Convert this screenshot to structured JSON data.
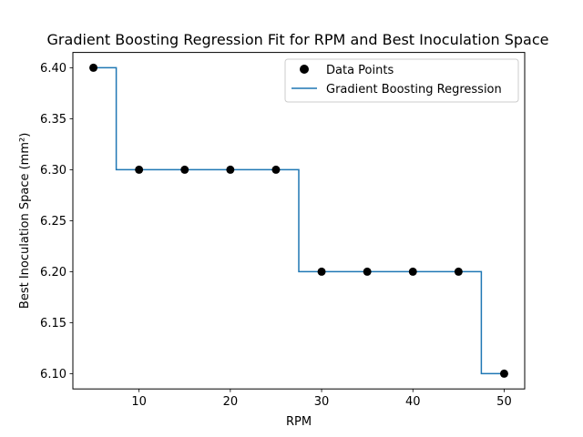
{
  "chart_data": {
    "type": "scatter",
    "title": "Gradient Boosting Regression Fit for RPM and Best Inoculation Space",
    "xlabel": "RPM",
    "ylabel": "Best Inoculation Space (mm²)",
    "xlim": [
      2.75,
      52.25
    ],
    "ylim": [
      6.085,
      6.415
    ],
    "xticks": [
      10,
      20,
      30,
      40,
      50
    ],
    "yticks": [
      6.1,
      6.15,
      6.2,
      6.25,
      6.3,
      6.35,
      6.4
    ],
    "xtick_labels": [
      "10",
      "20",
      "30",
      "40",
      "50"
    ],
    "ytick_labels": [
      "6.10",
      "6.15",
      "6.20",
      "6.25",
      "6.30",
      "6.35",
      "6.40"
    ],
    "grid": false,
    "legend_position": "upper-right",
    "series": [
      {
        "name": "Data Points",
        "kind": "scatter",
        "color": "#000000",
        "x": [
          5,
          10,
          15,
          20,
          25,
          30,
          35,
          40,
          45,
          50
        ],
        "y": [
          6.4,
          6.3,
          6.3,
          6.3,
          6.3,
          6.2,
          6.2,
          6.2,
          6.2,
          6.1
        ]
      },
      {
        "name": "Gradient Boosting Regression",
        "kind": "step-line",
        "color": "#1f77b4",
        "x": [
          5,
          7.5,
          7.5,
          27.5,
          27.5,
          47.5,
          47.5,
          50
        ],
        "y": [
          6.4,
          6.4,
          6.3,
          6.3,
          6.2,
          6.2,
          6.1,
          6.1
        ]
      }
    ]
  }
}
